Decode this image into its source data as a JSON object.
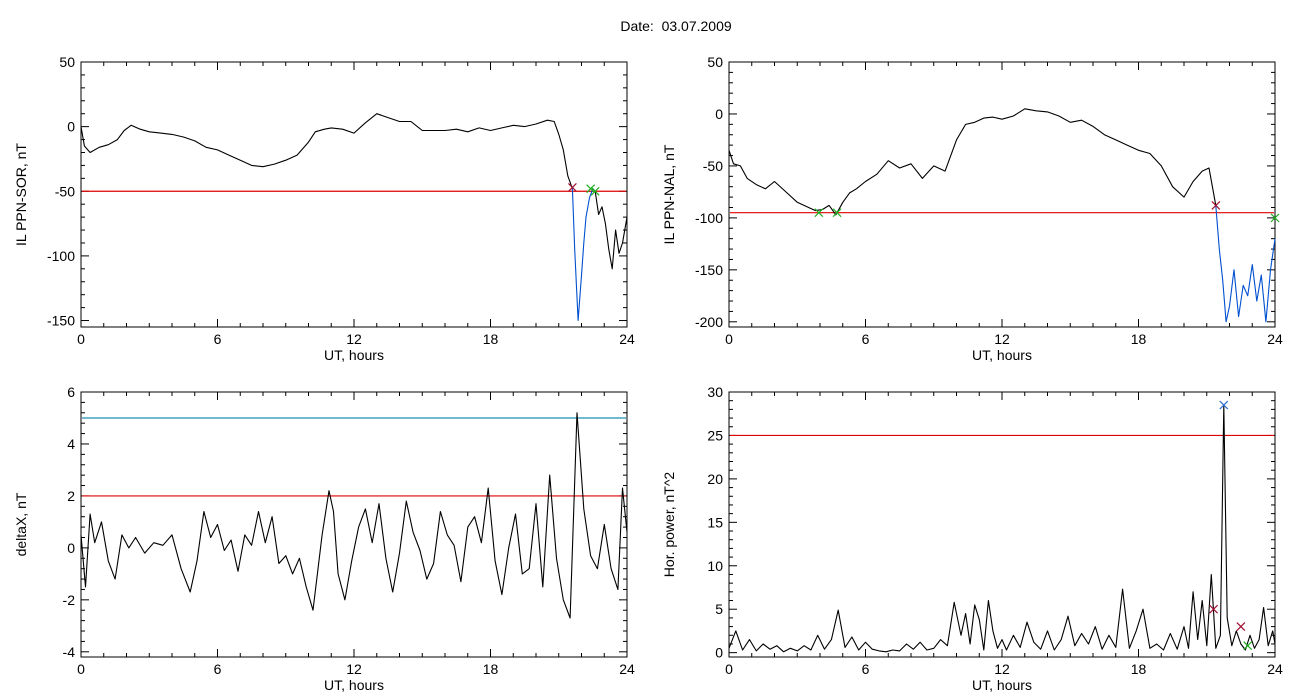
{
  "title": "Date:  03.07.2009",
  "colors": {
    "data": "#000000",
    "threshold_red": "#e00000",
    "threshold_blue": "#1a8fb0",
    "drop": "#0050d0",
    "mark_red": "#a01030",
    "mark_green": "#20b020",
    "mark_blue": "#3070d0"
  },
  "chart_data": [
    {
      "type": "line",
      "id": "sor",
      "xlabel": "UT, hours",
      "ylabel": "IL PPN-SOR, nT",
      "xlim": [
        0,
        24
      ],
      "ylim": [
        -155,
        50
      ],
      "xticks": [
        0,
        6,
        12,
        18,
        24
      ],
      "yticks": [
        -150,
        -100,
        -50,
        0,
        50
      ],
      "threshold": {
        "y": -50,
        "color": "red"
      },
      "series": [
        {
          "color": "black",
          "x": [
            0,
            0.15,
            0.4,
            0.8,
            1.2,
            1.6,
            1.9,
            2.2,
            2.6,
            3,
            3.5,
            4,
            4.5,
            5,
            5.5,
            6,
            6.5,
            7,
            7.5,
            8,
            8.5,
            9,
            9.5,
            10,
            10.3,
            10.7,
            11,
            11.5,
            12,
            12.5,
            13,
            13.5,
            14,
            14.5,
            15,
            15.5,
            16,
            16.5,
            17,
            17.5,
            18,
            18.5,
            19,
            19.5,
            20,
            20.5,
            20.8,
            21,
            21.2,
            21.4,
            21.6
          ],
          "y": [
            0,
            -15,
            -20,
            -16,
            -14,
            -10,
            -3,
            1,
            -2,
            -4,
            -5,
            -6,
            -8,
            -11,
            -16,
            -18,
            -22,
            -26,
            -30,
            -31,
            -29,
            -26,
            -22,
            -12,
            -4,
            -2,
            -1,
            -2,
            -5,
            3,
            10,
            7,
            4,
            4,
            -3,
            -3,
            -3,
            -2,
            -4,
            -1,
            -3,
            -1,
            1,
            0,
            2,
            5,
            4,
            -6,
            -18,
            -38,
            -48
          ]
        },
        {
          "color": "blue",
          "x": [
            21.6,
            21.7,
            21.85,
            22,
            22.1,
            22.2,
            22.35,
            22.5,
            22.6
          ],
          "y": [
            -48,
            -95,
            -150,
            -115,
            -90,
            -70,
            -55,
            -48,
            -50
          ]
        },
        {
          "color": "black",
          "x": [
            22.6,
            22.75,
            22.9,
            23.05,
            23.2,
            23.35,
            23.5,
            23.65,
            23.8,
            24
          ],
          "y": [
            -50,
            -68,
            -62,
            -75,
            -95,
            -110,
            -80,
            -98,
            -90,
            -70
          ]
        }
      ],
      "markers": [
        {
          "x": 21.6,
          "y": -47,
          "color": "red"
        },
        {
          "x": 22.4,
          "y": -48,
          "color": "green"
        },
        {
          "x": 22.6,
          "y": -50,
          "color": "green"
        }
      ]
    },
    {
      "type": "line",
      "id": "nal",
      "xlabel": "UT, hours",
      "ylabel": "IL PPN-NAL, nT",
      "xlim": [
        0,
        24
      ],
      "ylim": [
        -205,
        50
      ],
      "xticks": [
        0,
        6,
        12,
        18,
        24
      ],
      "yticks": [
        -200,
        -150,
        -100,
        -50,
        0,
        50
      ],
      "threshold": {
        "y": -95,
        "color": "red"
      },
      "series": [
        {
          "color": "black",
          "x": [
            0,
            0.2,
            0.5,
            0.8,
            1.2,
            1.6,
            2,
            2.5,
            3,
            3.5,
            3.8,
            4.1,
            4.4,
            4.7,
            5,
            5.3,
            5.6,
            6,
            6.5,
            7,
            7.5,
            8,
            8.5,
            9,
            9.5,
            10,
            10.4,
            10.8,
            11.2,
            11.6,
            12,
            12.5,
            13,
            13.5,
            14,
            14.5,
            15,
            15.5,
            16,
            16.5,
            17,
            17.5,
            18,
            18.5,
            19,
            19.5,
            20,
            20.4,
            20.8,
            21.1,
            21.4
          ],
          "y": [
            -35,
            -48,
            -50,
            -62,
            -68,
            -72,
            -65,
            -75,
            -85,
            -90,
            -93,
            -92,
            -88,
            -97,
            -85,
            -76,
            -72,
            -65,
            -58,
            -45,
            -52,
            -48,
            -62,
            -50,
            -55,
            -25,
            -10,
            -8,
            -4,
            -3,
            -5,
            -2,
            5,
            3,
            2,
            -2,
            -8,
            -6,
            -12,
            -20,
            -25,
            -30,
            -35,
            -38,
            -50,
            -70,
            -80,
            -65,
            -55,
            -52,
            -88
          ]
        },
        {
          "color": "blue",
          "x": [
            21.4,
            21.55,
            21.7,
            21.85,
            22,
            22.2,
            22.4,
            22.6,
            22.8,
            23,
            23.2,
            23.4,
            23.6,
            23.8,
            24
          ],
          "y": [
            -88,
            -130,
            -160,
            -200,
            -185,
            -150,
            -195,
            -165,
            -175,
            -145,
            -180,
            -155,
            -200,
            -150,
            -120
          ]
        }
      ],
      "markers": [
        {
          "x": 3.95,
          "y": -95,
          "color": "green"
        },
        {
          "x": 4.75,
          "y": -95,
          "color": "green"
        },
        {
          "x": 21.4,
          "y": -88,
          "color": "red"
        },
        {
          "x": 24,
          "y": -100,
          "color": "green"
        }
      ]
    },
    {
      "type": "line",
      "id": "deltax",
      "xlabel": "UT, hours",
      "ylabel": "deltaX, nT",
      "xlim": [
        0,
        24
      ],
      "ylim": [
        -4.2,
        6
      ],
      "xticks": [
        0,
        6,
        12,
        18,
        24
      ],
      "yticks": [
        -4,
        -2,
        0,
        2,
        4,
        6
      ],
      "thresholds": [
        {
          "y": 2,
          "color": "red"
        },
        {
          "y": 5,
          "color": "blue"
        }
      ],
      "series": [
        {
          "color": "black",
          "x": [
            0,
            0.2,
            0.4,
            0.6,
            0.9,
            1.2,
            1.5,
            1.8,
            2.1,
            2.4,
            2.8,
            3.2,
            3.6,
            4,
            4.4,
            4.8,
            5.1,
            5.4,
            5.7,
            6,
            6.3,
            6.6,
            6.9,
            7.2,
            7.5,
            7.8,
            8.1,
            8.4,
            8.7,
            9,
            9.3,
            9.6,
            9.9,
            10.2,
            10.6,
            10.9,
            11.1,
            11.3,
            11.6,
            11.9,
            12.2,
            12.5,
            12.8,
            13.1,
            13.4,
            13.7,
            14,
            14.3,
            14.6,
            14.9,
            15.2,
            15.5,
            15.8,
            16.1,
            16.4,
            16.7,
            17,
            17.3,
            17.6,
            17.9,
            18.2,
            18.5,
            18.8,
            19.1,
            19.4,
            19.7,
            20,
            20.3,
            20.6,
            20.9,
            21.2,
            21.5,
            21.8,
            22.1,
            22.4,
            22.7,
            23,
            23.3,
            23.6,
            23.8,
            24
          ],
          "y": [
            0.5,
            -1.5,
            1.3,
            0.2,
            1,
            -0.5,
            -1.2,
            0.5,
            0,
            0.4,
            -0.2,
            0.2,
            0.1,
            0.5,
            -0.8,
            -1.7,
            -0.5,
            1.4,
            0.4,
            0.9,
            -0.1,
            0.3,
            -0.9,
            0.5,
            0.1,
            1.4,
            0.2,
            1.2,
            -0.6,
            -0.3,
            -1,
            -0.4,
            -1.5,
            -2.4,
            0.5,
            2.2,
            1.4,
            -1,
            -2,
            -0.5,
            0.8,
            1.5,
            0.2,
            1.7,
            -0.4,
            -1.7,
            -0.2,
            1.8,
            0.6,
            -0.1,
            -1.2,
            -0.6,
            1.4,
            0.5,
            0.1,
            -1.3,
            0.8,
            1.2,
            0.2,
            2.3,
            -0.5,
            -1.8,
            0,
            1.3,
            -1,
            -0.8,
            1.7,
            -1.5,
            2.8,
            -0.4,
            -2,
            -2.7,
            5.2,
            1.5,
            -0.3,
            -0.8,
            0.9,
            -0.8,
            -1.6,
            2.3,
            0.6
          ]
        }
      ]
    },
    {
      "type": "line",
      "id": "power",
      "xlabel": "UT, hours",
      "ylabel": "Hor. power, nT^2",
      "xlim": [
        0,
        24
      ],
      "ylim": [
        -0.5,
        30
      ],
      "xticks": [
        0,
        6,
        12,
        18,
        24
      ],
      "yticks": [
        0,
        5,
        10,
        15,
        20,
        25,
        30
      ],
      "threshold": {
        "y": 25,
        "color": "red"
      },
      "series": [
        {
          "color": "black",
          "x": [
            0,
            0.3,
            0.6,
            0.9,
            1.2,
            1.5,
            1.8,
            2.1,
            2.4,
            2.7,
            3,
            3.3,
            3.6,
            3.9,
            4.2,
            4.5,
            4.8,
            5.1,
            5.4,
            5.7,
            6,
            6.3,
            6.6,
            6.9,
            7.2,
            7.5,
            7.8,
            8.1,
            8.4,
            8.7,
            9,
            9.3,
            9.6,
            9.9,
            10.2,
            10.4,
            10.6,
            10.8,
            11,
            11.2,
            11.4,
            11.6,
            11.8,
            12,
            12.2,
            12.5,
            12.8,
            13.1,
            13.4,
            13.7,
            14,
            14.3,
            14.6,
            14.9,
            15.2,
            15.5,
            15.8,
            16.1,
            16.4,
            16.7,
            17,
            17.3,
            17.6,
            17.9,
            18.2,
            18.5,
            18.8,
            19.1,
            19.4,
            19.7,
            20,
            20.2,
            20.4,
            20.6,
            20.8,
            21,
            21.2,
            21.4,
            21.6,
            21.75,
            21.9,
            22.1,
            22.3,
            22.5,
            22.7,
            22.9,
            23.1,
            23.3,
            23.5,
            23.7,
            23.9,
            24
          ],
          "y": [
            0.5,
            2.5,
            0.3,
            1.5,
            0.2,
            1,
            0.4,
            0.8,
            0.1,
            0.5,
            0.2,
            0.8,
            0.3,
            2,
            0.4,
            1.5,
            4.9,
            0.6,
            1.8,
            0.3,
            1.2,
            0.4,
            0.2,
            0.1,
            0.3,
            0.2,
            1,
            0.4,
            1.2,
            0.3,
            0.5,
            1.5,
            0.8,
            5.8,
            2,
            4.5,
            1,
            5.5,
            3.8,
            0.3,
            6,
            2.5,
            0.5,
            1.5,
            0.3,
            2,
            0.6,
            3.5,
            1.2,
            0.4,
            2.5,
            0.3,
            1.5,
            4.2,
            0.8,
            2.2,
            1,
            3,
            0.4,
            2,
            0.6,
            7.3,
            0.5,
            2.5,
            5,
            0.5,
            1,
            0.3,
            2.2,
            0.4,
            3,
            0.5,
            7,
            1.5,
            6,
            0.8,
            9,
            0.5,
            2,
            28.5,
            4,
            0.8,
            2.5,
            1,
            0.3,
            2,
            0.5,
            1.5,
            5.2,
            0.8,
            2.5,
            1
          ]
        }
      ],
      "markers": [
        {
          "x": 21.75,
          "y": 28.5,
          "color": "blue"
        },
        {
          "x": 21.3,
          "y": 5,
          "color": "red"
        },
        {
          "x": 22.5,
          "y": 3,
          "color": "red"
        },
        {
          "x": 22.8,
          "y": 0.8,
          "color": "green"
        }
      ]
    }
  ]
}
